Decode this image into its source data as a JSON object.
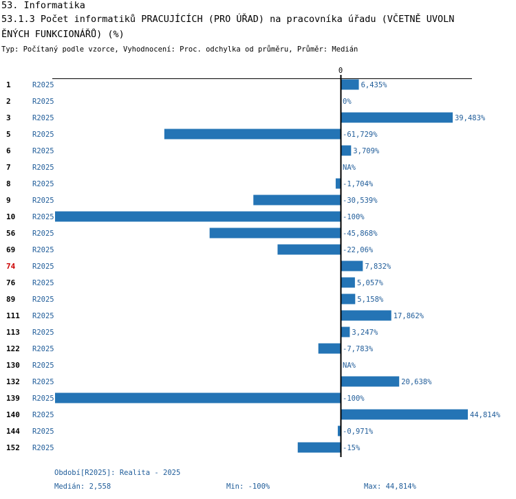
{
  "title": {
    "line1": "53. Informatika",
    "line2": "53.1.3 Počet informatiků PRACUJÍCÍCH (PRO ÚŘAD) na pracovníka úřadu (VČETNĚ UVOLN",
    "line3": "ĚNÝCH FUNKCIONÁŘŮ) (%)"
  },
  "subtitle": "Typ: Počítaný podle vzorce, Vyhodnocení: Proc. odchylka od průměru, Průměr: Medián",
  "chart_data": {
    "type": "bar",
    "orientation": "horizontal",
    "zero_label": "0",
    "xlim": [
      -100,
      44.814
    ],
    "highlight_category": "74",
    "series": [
      {
        "name": "R2025",
        "rows": [
          {
            "category": "1",
            "series": "R2025",
            "value": 6.435,
            "label": "6,435%"
          },
          {
            "category": "2",
            "series": "R2025",
            "value": 0,
            "label": "0%"
          },
          {
            "category": "3",
            "series": "R2025",
            "value": 39.483,
            "label": "39,483%"
          },
          {
            "category": "5",
            "series": "R2025",
            "value": -61.729,
            "label": "-61,729%"
          },
          {
            "category": "6",
            "series": "R2025",
            "value": 3.709,
            "label": "3,709%"
          },
          {
            "category": "7",
            "series": "R2025",
            "value": null,
            "label": "NA%"
          },
          {
            "category": "8",
            "series": "R2025",
            "value": -1.704,
            "label": "-1,704%"
          },
          {
            "category": "9",
            "series": "R2025",
            "value": -30.539,
            "label": "-30,539%"
          },
          {
            "category": "10",
            "series": "R2025",
            "value": -100,
            "label": "-100%"
          },
          {
            "category": "56",
            "series": "R2025",
            "value": -45.868,
            "label": "-45,868%"
          },
          {
            "category": "69",
            "series": "R2025",
            "value": -22.06,
            "label": "-22,06%"
          },
          {
            "category": "74",
            "series": "R2025",
            "value": 7.832,
            "label": "7,832%"
          },
          {
            "category": "76",
            "series": "R2025",
            "value": 5.057,
            "label": "5,057%"
          },
          {
            "category": "89",
            "series": "R2025",
            "value": 5.158,
            "label": "5,158%"
          },
          {
            "category": "111",
            "series": "R2025",
            "value": 17.862,
            "label": "17,862%"
          },
          {
            "category": "113",
            "series": "R2025",
            "value": 3.247,
            "label": "3,247%"
          },
          {
            "category": "122",
            "series": "R2025",
            "value": -7.783,
            "label": "-7,783%"
          },
          {
            "category": "130",
            "series": "R2025",
            "value": null,
            "label": "NA%"
          },
          {
            "category": "132",
            "series": "R2025",
            "value": 20.638,
            "label": "20,638%"
          },
          {
            "category": "139",
            "series": "R2025",
            "value": -100,
            "label": "-100%"
          },
          {
            "category": "140",
            "series": "R2025",
            "value": 44.814,
            "label": "44,814%"
          },
          {
            "category": "144",
            "series": "R2025",
            "value": -0.971,
            "label": "-0,971%"
          },
          {
            "category": "152",
            "series": "R2025",
            "value": -15,
            "label": "-15%"
          }
        ]
      }
    ]
  },
  "footer": {
    "period": "Období[R2025]: Realita - 2025",
    "median": "Medián: 2,558",
    "min": "Min: -100%",
    "max": "Max: 44,814%"
  },
  "colors": {
    "bar": "#2474b5",
    "label": "#1f5c99",
    "highlight": "#cc0000",
    "axis": "#000000"
  }
}
